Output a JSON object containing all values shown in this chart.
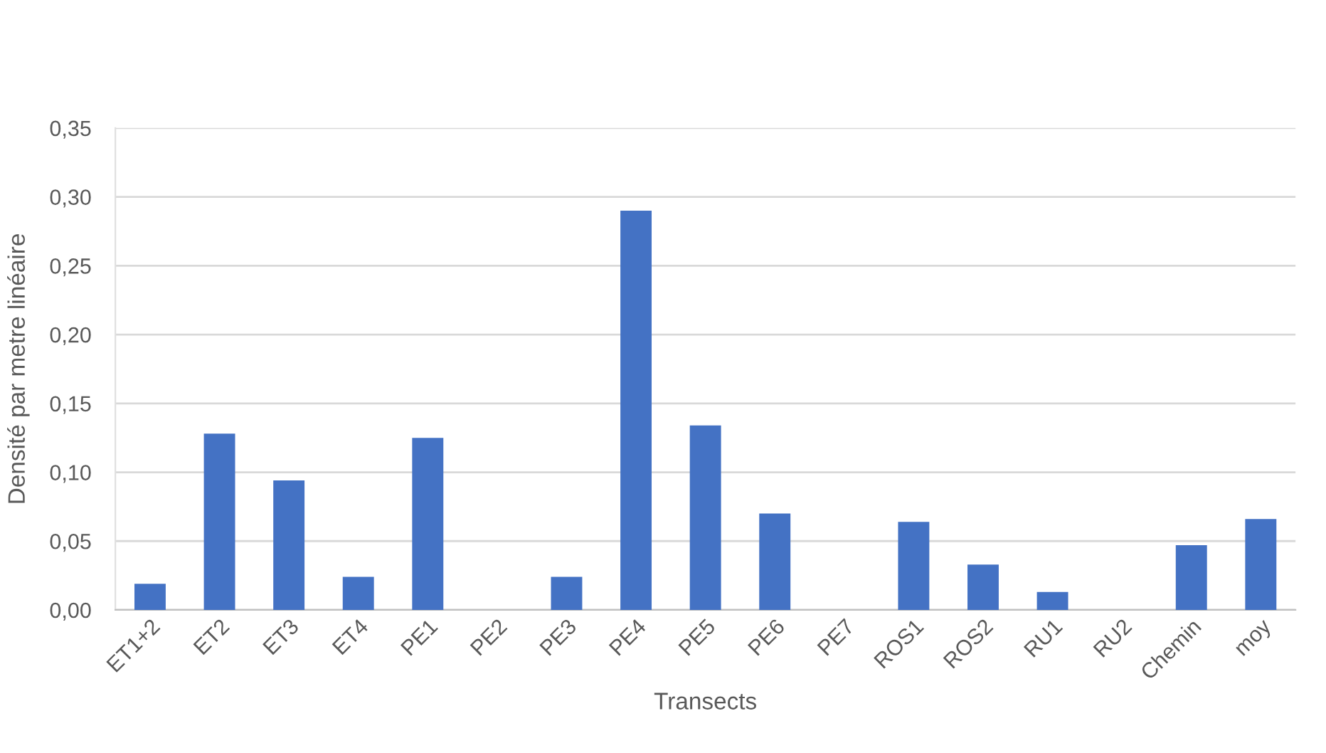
{
  "chart_data": {
    "type": "bar",
    "xlabel": "Transects",
    "ylabel": "Densité par metre linéaire",
    "categories": [
      "ET1+2",
      "ET2",
      "ET3",
      "ET4",
      "PE1",
      "PE2",
      "PE3",
      "PE4",
      "PE5",
      "PE6",
      "PE7",
      "ROS1",
      "ROS2",
      "RU1",
      "RU2",
      "Chemin",
      "moy"
    ],
    "values": [
      0.019,
      0.128,
      0.094,
      0.024,
      0.125,
      0,
      0.024,
      0.29,
      0.134,
      0.07,
      0,
      0.064,
      0.033,
      0.013,
      0,
      0.047,
      0.066
    ],
    "color": "#4472c4",
    "ylim": [
      0,
      0.35
    ],
    "yticks": [
      {
        "value": 0,
        "label": "0,00"
      },
      {
        "value": 0.05,
        "label": "0,05"
      },
      {
        "value": 0.1,
        "label": "0,10"
      },
      {
        "value": 0.15,
        "label": "0,15"
      },
      {
        "value": 0.2,
        "label": "0,20"
      },
      {
        "value": 0.25,
        "label": "0,25"
      },
      {
        "value": 0.3,
        "label": "0,30"
      },
      {
        "value": 0.35,
        "label": "0,35"
      }
    ],
    "grid": "y",
    "legend": false
  }
}
